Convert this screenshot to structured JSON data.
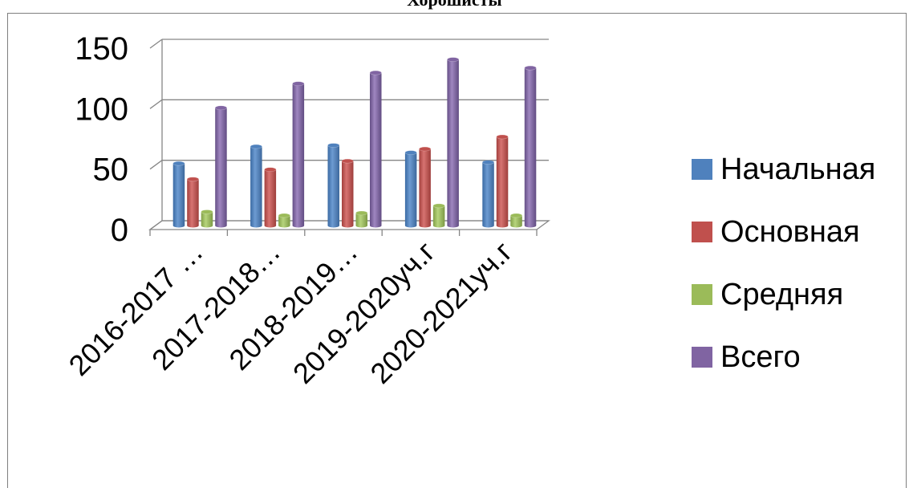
{
  "title": "Хорошисты",
  "chart_data": {
    "type": "bar",
    "title": "Хорошисты",
    "categories": [
      "2016-2017 …",
      "2017-2018…",
      "2018-2019…",
      "2019-2020уч.г",
      "2020-2021уч.г"
    ],
    "series": [
      {
        "name": "Начальная",
        "color": "#4f81bd",
        "values": [
          48,
          62,
          63,
          57,
          49
        ]
      },
      {
        "name": "Основная",
        "color": "#c0504d",
        "values": [
          35,
          43,
          50,
          60,
          70
        ]
      },
      {
        "name": "Средняя",
        "color": "#9bbb59",
        "values": [
          8,
          5,
          7,
          13,
          5
        ]
      },
      {
        "name": "Всего",
        "color": "#8064a2",
        "values": [
          94,
          114,
          123,
          134,
          127
        ]
      }
    ],
    "yticks": [
      "0",
      "50",
      "100",
      "150"
    ],
    "ylim": [
      0,
      150
    ],
    "legend_position": "right",
    "grid": true
  }
}
